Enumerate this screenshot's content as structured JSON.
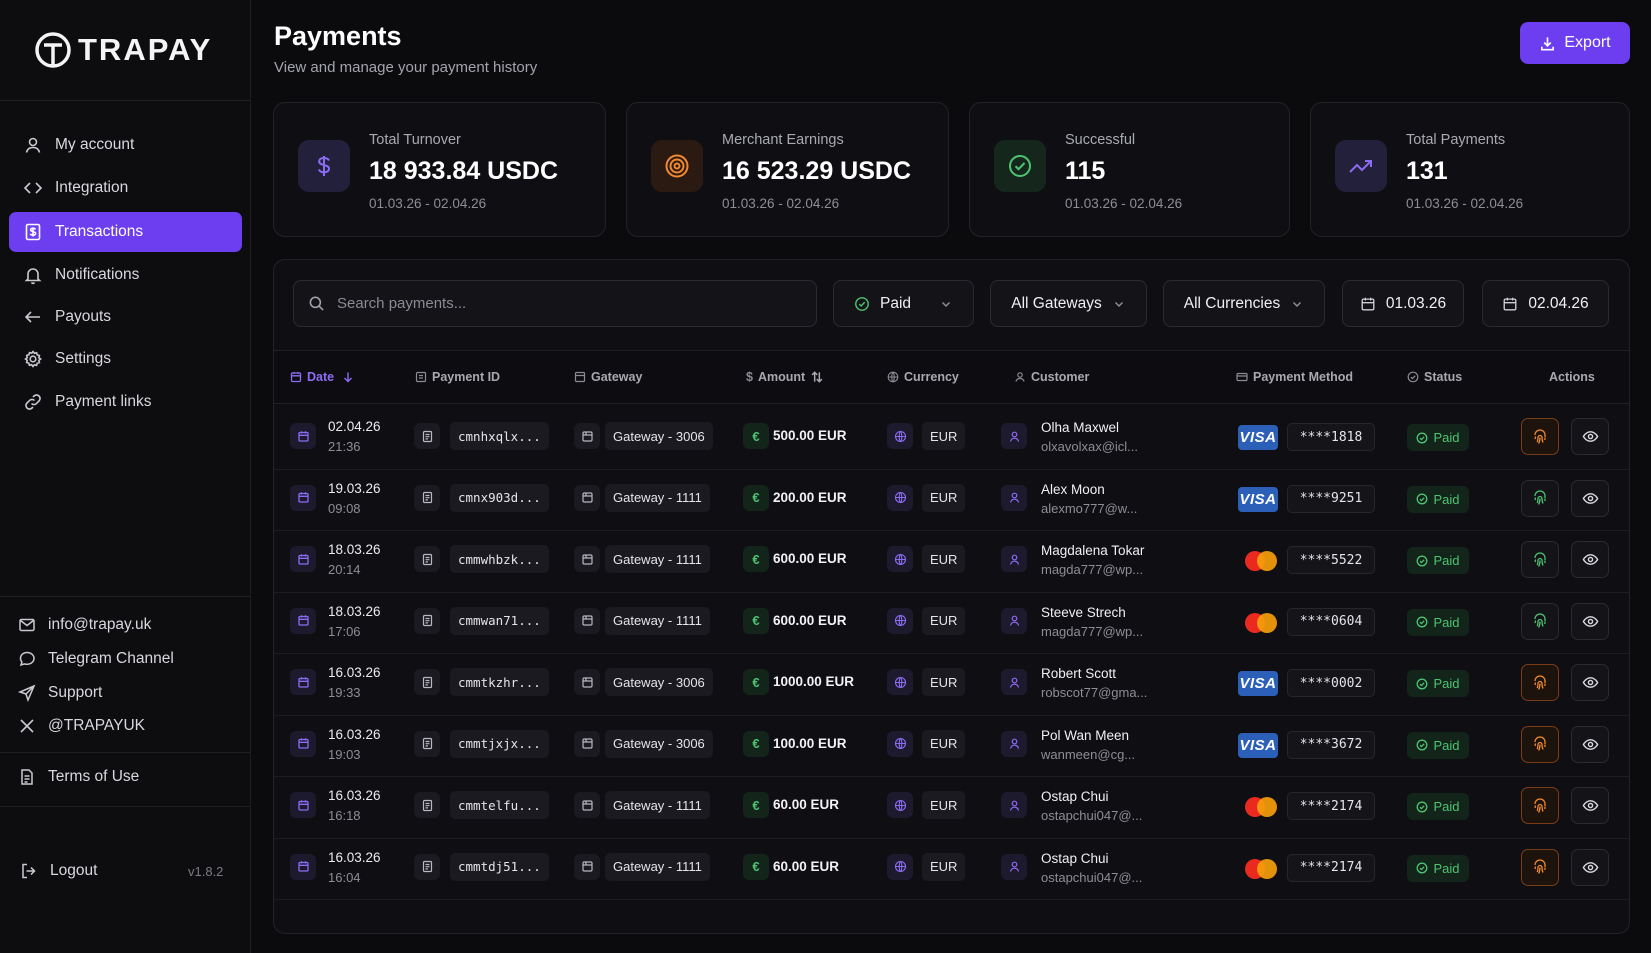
{
  "brand": {
    "name": "TRAPAY",
    "accent": "#6d3ef0"
  },
  "sidebar": {
    "nav": [
      {
        "label": "My account",
        "icon": "user-icon",
        "active": false
      },
      {
        "label": "Integration",
        "icon": "code-icon",
        "active": false
      },
      {
        "label": "Transactions",
        "icon": "receipt-icon",
        "active": true
      },
      {
        "label": "Notifications",
        "icon": "bell-icon",
        "active": false
      },
      {
        "label": "Payouts",
        "icon": "arrow-left-icon",
        "active": false
      },
      {
        "label": "Settings",
        "icon": "gear-icon",
        "active": false
      },
      {
        "label": "Payment links",
        "icon": "link-icon",
        "active": false
      }
    ],
    "contacts": [
      {
        "label": "info@trapay.uk",
        "icon": "mail-icon"
      },
      {
        "label": "Telegram Channel",
        "icon": "chat-icon"
      },
      {
        "label": "Support",
        "icon": "send-icon"
      },
      {
        "label": "@TRAPAYUK",
        "icon": "x-icon"
      }
    ],
    "terms": "Terms of Use",
    "logout": "Logout",
    "version": "v1.8.2"
  },
  "header": {
    "title": "Payments",
    "subtitle": "View and manage your payment history",
    "export_label": "Export"
  },
  "stats": [
    {
      "label": "Total Turnover",
      "value": "18 933.84 USDC",
      "range": "01.03.26 - 02.04.26",
      "icon": "dollar-icon",
      "color": "#8d6cf5"
    },
    {
      "label": "Merchant Earnings",
      "value": "16 523.29 USDC",
      "range": "01.03.26 - 02.04.26",
      "icon": "target-icon",
      "color": "#f2892f"
    },
    {
      "label": "Successful",
      "value": "115",
      "range": "01.03.26 - 02.04.26",
      "icon": "check-circle-icon",
      "color": "#4cc471"
    },
    {
      "label": "Total Payments",
      "value": "131",
      "range": "01.03.26 - 02.04.26",
      "icon": "trending-up-icon",
      "color": "#8d6cf5"
    }
  ],
  "filters": {
    "search_placeholder": "Search payments...",
    "status": "Paid",
    "gateways": "All Gateways",
    "currencies": "All Currencies",
    "date_from": "01.03.26",
    "date_to": "02.04.26"
  },
  "table": {
    "columns": {
      "date": "Date",
      "payment_id": "Payment ID",
      "gateway": "Gateway",
      "amount": "Amount",
      "currency": "Currency",
      "customer": "Customer",
      "method": "Payment Method",
      "status": "Status",
      "actions": "Actions"
    },
    "rows": [
      {
        "date": "02.04.26",
        "time": "21:36",
        "id": "cmnhxqlx...",
        "gateway": "Gateway - 3006",
        "amount": "500.00 EUR",
        "currency": "EUR",
        "name": "Olha Maxwel",
        "email": "olxavolxax@icl...",
        "brand": "VISA",
        "card": "****1818",
        "status": "Paid",
        "fp": "orange"
      },
      {
        "date": "19.03.26",
        "time": "09:08",
        "id": "cmnx903d...",
        "gateway": "Gateway - 1111",
        "amount": "200.00 EUR",
        "currency": "EUR",
        "name": "Alex Moon",
        "email": "alexmo777@w...",
        "brand": "VISA",
        "card": "****9251",
        "status": "Paid",
        "fp": "green"
      },
      {
        "date": "18.03.26",
        "time": "20:14",
        "id": "cmmwhbzk...",
        "gateway": "Gateway - 1111",
        "amount": "600.00 EUR",
        "currency": "EUR",
        "name": "Magdalena Tokar",
        "email": "magda777@wp...",
        "brand": "MC",
        "card": "****5522",
        "status": "Paid",
        "fp": "green"
      },
      {
        "date": "18.03.26",
        "time": "17:06",
        "id": "cmmwan71...",
        "gateway": "Gateway - 1111",
        "amount": "600.00 EUR",
        "currency": "EUR",
        "name": "Steeve Strech",
        "email": "magda777@wp...",
        "brand": "MC",
        "card": "****0604",
        "status": "Paid",
        "fp": "green"
      },
      {
        "date": "16.03.26",
        "time": "19:33",
        "id": "cmmtkzhr...",
        "gateway": "Gateway - 3006",
        "amount": "1000.00 EUR",
        "currency": "EUR",
        "name": "Robert Scott",
        "email": "robscot77@gma...",
        "brand": "VISA",
        "card": "****0002",
        "status": "Paid",
        "fp": "orange"
      },
      {
        "date": "16.03.26",
        "time": "19:03",
        "id": "cmmtjxjx...",
        "gateway": "Gateway - 3006",
        "amount": "100.00 EUR",
        "currency": "EUR",
        "name": "Pol Wan Meen",
        "email": "wanmeen@cg...",
        "brand": "VISA",
        "card": "****3672",
        "status": "Paid",
        "fp": "orange"
      },
      {
        "date": "16.03.26",
        "time": "16:18",
        "id": "cmmtelfu...",
        "gateway": "Gateway - 1111",
        "amount": "60.00 EUR",
        "currency": "EUR",
        "name": "Ostap Chui",
        "email": "ostapchui047@...",
        "brand": "MC",
        "card": "****2174",
        "status": "Paid",
        "fp": "orange"
      },
      {
        "date": "16.03.26",
        "time": "16:04",
        "id": "cmmtdj51...",
        "gateway": "Gateway - 1111",
        "amount": "60.00 EUR",
        "currency": "EUR",
        "name": "Ostap Chui",
        "email": "ostapchui047@...",
        "brand": "MC",
        "card": "****2174",
        "status": "Paid",
        "fp": "orange"
      }
    ]
  }
}
